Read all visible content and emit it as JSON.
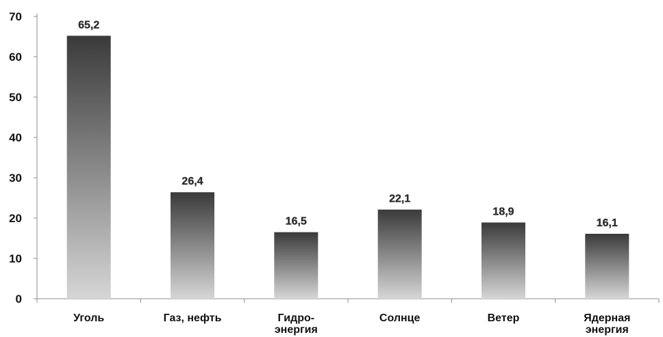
{
  "chart_data": {
    "type": "bar",
    "title": "",
    "xlabel": "",
    "ylabel": "",
    "categories": [
      [
        "Уголь"
      ],
      [
        "Газ, нефть"
      ],
      [
        "Гидро-",
        "энергия"
      ],
      [
        "Солнце"
      ],
      [
        "Ветер"
      ],
      [
        "Ядерная",
        "энергия"
      ]
    ],
    "values": [
      65.2,
      26.4,
      16.5,
      22.1,
      18.9,
      16.1
    ],
    "value_labels": [
      "65,2",
      "26,4",
      "16,5",
      "22,1",
      "18,9",
      "16,1"
    ],
    "ylim": [
      0,
      70
    ],
    "yticks": [
      "0",
      "10",
      "20",
      "30",
      "40",
      "50",
      "60",
      "70"
    ],
    "grid": false,
    "legend": "none",
    "bar_gradient": {
      "top": "#3a3a3a",
      "bottom": "#d6d6d6"
    },
    "axis_color": "#8c8c8c"
  }
}
